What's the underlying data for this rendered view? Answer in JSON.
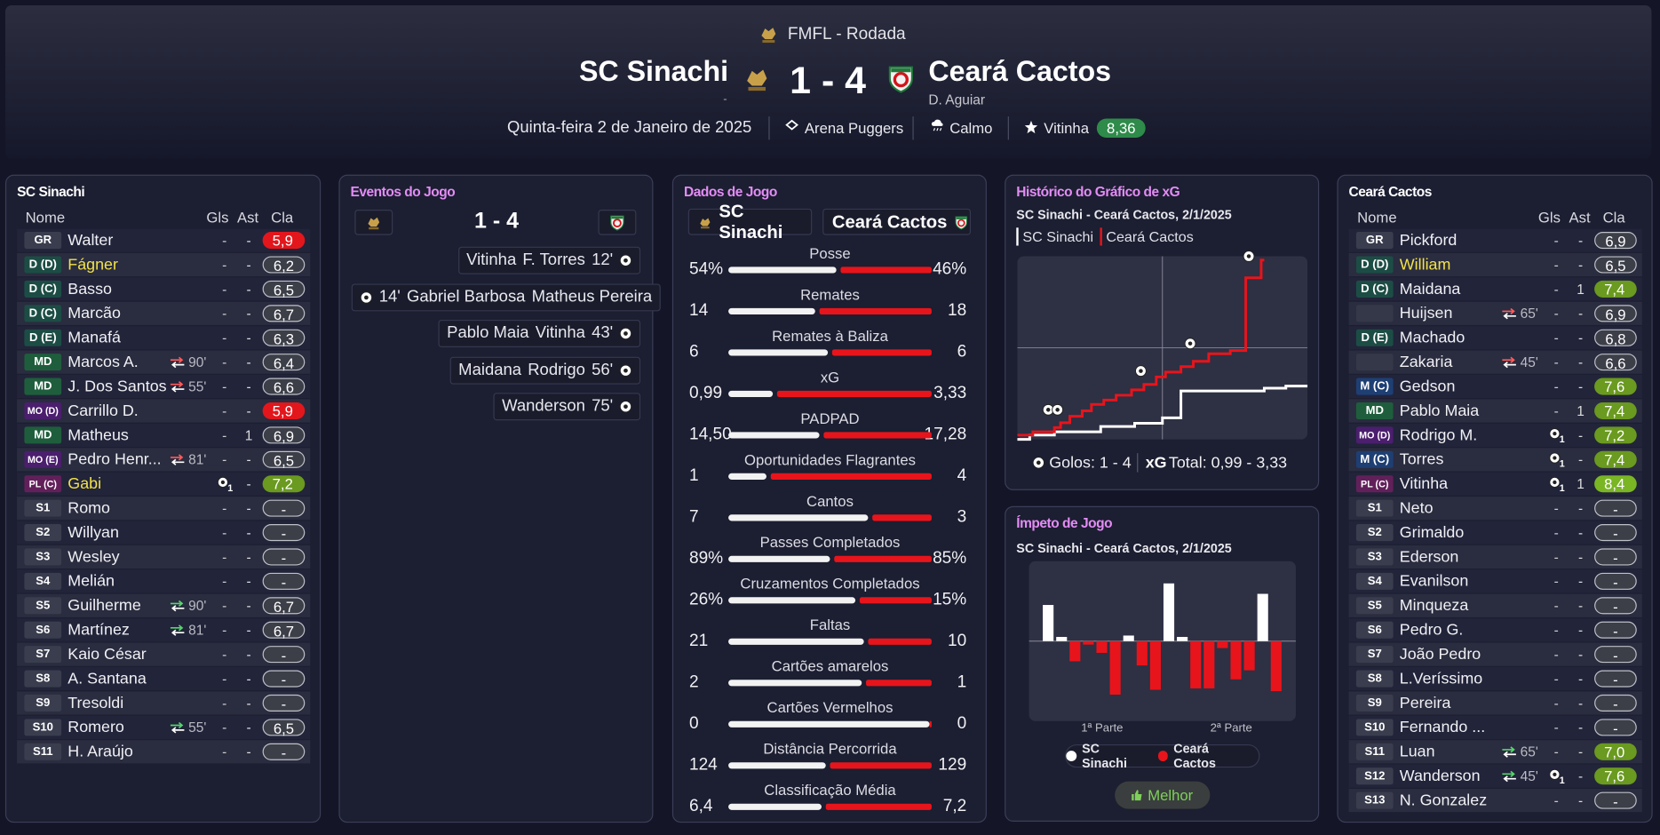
{
  "header": {
    "competition": "FMFL - Rodada",
    "home_team": "SC Sinachi",
    "home_manager": "-",
    "score": "1 - 4",
    "away_team": "Ceará Cactos",
    "away_manager": "D. Aguiar",
    "date": "Quinta-feira 2 de Janeiro de 2025",
    "stadium": "Arena Puggers",
    "weather": "Calmo",
    "player_of_match": "Vitinha",
    "player_of_match_rating": "8,36"
  },
  "home_lineup": {
    "title": "SC Sinachi",
    "columns": [
      "Nome",
      "Gls",
      "Ast",
      "Cla"
    ],
    "rows": [
      {
        "pos": "GR",
        "name": "Walter",
        "gls": "-",
        "ast": "-",
        "rating": {
          "value": 5.9,
          "label": "5,9"
        }
      },
      {
        "pos": "D (D)",
        "name": "Fágner",
        "highlight": true,
        "gls": "-",
        "ast": "-",
        "rating": {
          "value": 6.2,
          "label": "6,2"
        }
      },
      {
        "pos": "D (C)",
        "name": "Basso",
        "gls": "-",
        "ast": "-",
        "rating": {
          "value": 6.5,
          "label": "6,5"
        }
      },
      {
        "pos": "D (C)",
        "name": "Marcão",
        "gls": "-",
        "ast": "-",
        "rating": {
          "value": 6.7,
          "label": "6,7"
        }
      },
      {
        "pos": "D (E)",
        "name": "Manafá",
        "gls": "-",
        "ast": "-",
        "rating": {
          "value": 6.3,
          "label": "6,3"
        }
      },
      {
        "pos": "MD",
        "name": "Marcos A.",
        "sub": "90'",
        "sub_dir": "off",
        "gls": "-",
        "ast": "-",
        "rating": {
          "value": 6.4,
          "label": "6,4"
        }
      },
      {
        "pos": "MD",
        "name": "J. Dos Santos",
        "sub": "55'",
        "sub_dir": "off",
        "gls": "-",
        "ast": "-",
        "rating": {
          "value": 6.6,
          "label": "6,6"
        }
      },
      {
        "pos": "MO (D)",
        "name": "Carrillo D.",
        "gls": "-",
        "ast": "-",
        "rating": {
          "value": 5.9,
          "label": "5,9"
        }
      },
      {
        "pos": "MD",
        "name": "Matheus",
        "gls": "-",
        "ast": 1,
        "rating": {
          "value": 6.9,
          "label": "6,9"
        }
      },
      {
        "pos": "MO (E)",
        "name": "Pedro Henr...",
        "sub": "81'",
        "sub_dir": "off",
        "gls": "-",
        "ast": "-",
        "rating": {
          "value": 6.5,
          "label": "6,5"
        }
      },
      {
        "pos": "PL (C)",
        "name": "Gabi",
        "highlight": true,
        "gls": 1,
        "ast": "-",
        "rating": {
          "value": 7.2,
          "label": "7,2"
        }
      },
      {
        "pos": "S1",
        "name": "Romo",
        "gls": "-",
        "ast": "-",
        "rating": "-"
      },
      {
        "pos": "S2",
        "name": "Willyan",
        "gls": "-",
        "ast": "-",
        "rating": "-"
      },
      {
        "pos": "S3",
        "name": "Wesley",
        "gls": "-",
        "ast": "-",
        "rating": "-"
      },
      {
        "pos": "S4",
        "name": "Melián",
        "gls": "-",
        "ast": "-",
        "rating": "-"
      },
      {
        "pos": "S5",
        "name": "Guilherme",
        "sub": "90'",
        "sub_dir": "on",
        "gls": "-",
        "ast": "-",
        "rating": {
          "value": 6.7,
          "label": "6,7"
        }
      },
      {
        "pos": "S6",
        "name": "Martínez",
        "sub": "81'",
        "sub_dir": "on",
        "gls": "-",
        "ast": "-",
        "rating": {
          "value": 6.7,
          "label": "6,7"
        }
      },
      {
        "pos": "S7",
        "name": "Kaio César",
        "gls": "-",
        "ast": "-",
        "rating": "-"
      },
      {
        "pos": "S8",
        "name": "A. Santana",
        "gls": "-",
        "ast": "-",
        "rating": "-"
      },
      {
        "pos": "S9",
        "name": "Tresoldi",
        "gls": "-",
        "ast": "-",
        "rating": "-"
      },
      {
        "pos": "S10",
        "name": "Romero",
        "sub": "55'",
        "sub_dir": "on",
        "gls": "-",
        "ast": "-",
        "rating": {
          "value": 6.5,
          "label": "6,5"
        }
      },
      {
        "pos": "S11",
        "name": "H. Araújo",
        "gls": "-",
        "ast": "-",
        "rating": "-"
      }
    ]
  },
  "events": {
    "title": "Eventos do Jogo",
    "score": "1 - 4",
    "items": [
      {
        "side": "away",
        "names": [
          "Vitinha",
          "F. Torres"
        ],
        "minute": "12'"
      },
      {
        "side": "home",
        "minute": "14'",
        "names": [
          "Gabriel Barbosa",
          "Matheus Pereira"
        ]
      },
      {
        "side": "away",
        "names": [
          "Pablo Maia",
          "Vitinha"
        ],
        "minute": "43'"
      },
      {
        "side": "away",
        "names": [
          "Maidana",
          "Rodrigo"
        ],
        "minute": "56'"
      },
      {
        "side": "away",
        "names": [
          "Wanderson"
        ],
        "minute": "75'"
      }
    ]
  },
  "match_stats": {
    "title": "Dados de Jogo",
    "home_team": "SC Sinachi",
    "away_team": "Ceará Cactos",
    "rows": [
      {
        "name": "Posse",
        "home": {
          "value": 54,
          "label": "54%"
        },
        "away": {
          "value": 46,
          "label": "46%"
        }
      },
      {
        "name": "Remates",
        "home": 14,
        "away": 18
      },
      {
        "name": "Remates à Baliza",
        "home": 6,
        "away": 6
      },
      {
        "name": "xG",
        "home": {
          "value": 0.99,
          "label": "0,99"
        },
        "away": {
          "value": 3.33,
          "label": "3,33"
        }
      },
      {
        "name": "PADPAD",
        "home": {
          "value": 14.5,
          "label": "14,50"
        },
        "away": {
          "value": 17.28,
          "label": "17,28"
        }
      },
      {
        "name": "Oportunidades Flagrantes",
        "home": 1,
        "away": 4
      },
      {
        "name": "Cantos",
        "home": 7,
        "away": 3
      },
      {
        "name": "Passes Completados",
        "home": {
          "value": 89,
          "label": "89%"
        },
        "away": {
          "value": 85,
          "label": "85%"
        }
      },
      {
        "name": "Cruzamentos Completados",
        "home": {
          "value": 26,
          "label": "26%"
        },
        "away": {
          "value": 15,
          "label": "15%"
        }
      },
      {
        "name": "Faltas",
        "home": 21,
        "away": 10
      },
      {
        "name": "Cartões amarelos",
        "home": 2,
        "away": 1
      },
      {
        "name": "Cartões Vermelhos",
        "home": 0,
        "away": 0
      },
      {
        "name": "Distância Percorrida",
        "home": 124,
        "away": 129
      },
      {
        "name": "Classificação Média",
        "home": {
          "value": 6.4,
          "label": "6,4"
        },
        "away": {
          "value": 7.2,
          "label": "7,2"
        }
      }
    ]
  },
  "xg_chart": {
    "type": "line",
    "title": "Histórico do Gráfico de xG",
    "subtitle": "SC Sinachi - Ceará Cactos, 2/1/2025",
    "xlim": [
      0,
      94
    ],
    "ylim": [
      0,
      3.4
    ],
    "series": [
      {
        "name": "SC Sinachi",
        "color": "#ffffff",
        "x": [
          0,
          4,
          4,
          12,
          12,
          27,
          27,
          38,
          38,
          47,
          47,
          53,
          53,
          80,
          80,
          87,
          87,
          94
        ],
        "y": [
          0,
          0,
          0.08,
          0.08,
          0.14,
          0.14,
          0.24,
          0.24,
          0.3,
          0.3,
          0.4,
          0.4,
          0.9,
          0.9,
          0.95,
          0.95,
          0.99,
          0.99
        ]
      },
      {
        "name": "Ceará Cactos",
        "color": "#e8141b",
        "x": [
          0,
          5,
          5,
          12,
          12,
          14,
          14,
          17,
          17,
          21,
          21,
          24,
          24,
          28,
          28,
          32,
          32,
          37,
          37,
          41,
          41,
          45,
          45,
          48,
          48,
          53,
          53,
          57,
          57,
          62,
          62,
          69,
          69,
          74,
          74,
          79,
          79,
          80
        ],
        "y": [
          0.08,
          0.08,
          0.14,
          0.14,
          0.22,
          0.22,
          0.31,
          0.31,
          0.43,
          0.43,
          0.53,
          0.53,
          0.65,
          0.65,
          0.73,
          0.73,
          0.82,
          0.82,
          0.92,
          0.92,
          1.02,
          1.02,
          1.16,
          1.16,
          1.25,
          1.25,
          1.35,
          1.35,
          1.45,
          1.45,
          1.59,
          1.59,
          1.65,
          1.65,
          3.0,
          3.0,
          3.33,
          3.33
        ]
      }
    ],
    "goals": {
      "x": [
        10,
        13,
        40,
        56,
        75
      ],
      "y": [
        0.55,
        0.55,
        1.27,
        1.78,
        3.4
      ]
    },
    "footer_goals": "Golos: 1 - 4",
    "footer_xg_label": "xG",
    "footer_xg": "Total: 0,99 - 3,33"
  },
  "momentum_chart": {
    "type": "bar",
    "title": "Ímpeto de Jogo",
    "subtitle": "SC Sinachi - Ceará Cactos, 2/1/2025",
    "ylim": [
      -1.15,
      1.15
    ],
    "values": [
      0.52,
      0.06,
      -0.29,
      -0.05,
      -0.17,
      -0.77,
      0.08,
      -0.35,
      -0.7,
      0.83,
      0.06,
      -0.68,
      -0.68,
      -0.1,
      -0.55,
      -0.42,
      0.68,
      -0.72
    ],
    "series": [
      {
        "name": "SC Sinachi",
        "color": "#ffffff"
      },
      {
        "name": "Ceará Cactos",
        "color": "#e8141b"
      }
    ],
    "period_labels": [
      "1ª Parte",
      "2ª Parte"
    ],
    "button": "Melhor"
  },
  "away_lineup": {
    "title": "Ceará Cactos",
    "columns": [
      "Nome",
      "Gls",
      "Ast",
      "Cla"
    ],
    "rows": [
      {
        "pos": "GR",
        "name": "Pickford",
        "gls": "-",
        "ast": "-",
        "rating": {
          "value": 6.9,
          "label": "6,9"
        }
      },
      {
        "pos": "D (D)",
        "name": "William",
        "highlight": true,
        "gls": "-",
        "ast": "-",
        "rating": {
          "value": 6.5,
          "label": "6,5"
        }
      },
      {
        "pos": "D (C)",
        "name": "Maidana",
        "gls": "-",
        "ast": 1,
        "rating": {
          "value": 7.4,
          "label": "7,4"
        }
      },
      {
        "name": "Huijsen",
        "sub": "65'",
        "sub_dir": "off",
        "gls": "-",
        "ast": "-",
        "rating": {
          "value": 6.9,
          "label": "6,9"
        }
      },
      {
        "pos": "D (E)",
        "name": "Machado",
        "gls": "-",
        "ast": "-",
        "rating": {
          "value": 6.8,
          "label": "6,8"
        }
      },
      {
        "name": "Zakaria",
        "sub": "45'",
        "sub_dir": "off",
        "gls": "-",
        "ast": "-",
        "rating": {
          "value": 6.6,
          "label": "6,6"
        }
      },
      {
        "pos": "M (C)",
        "name": "Gedson",
        "gls": "-",
        "ast": "-",
        "rating": {
          "value": 7.6,
          "label": "7,6"
        }
      },
      {
        "pos": "MD",
        "name": "Pablo Maia",
        "gls": "-",
        "ast": 1,
        "rating": {
          "value": 7.4,
          "label": "7,4"
        }
      },
      {
        "pos": "MO (D)",
        "name": "Rodrigo M.",
        "gls": 1,
        "ast": "-",
        "rating": {
          "value": 7.2,
          "label": "7,2"
        }
      },
      {
        "pos": "M (C)",
        "name": "Torres",
        "gls": 1,
        "ast": "-",
        "rating": {
          "value": 7.4,
          "label": "7,4"
        }
      },
      {
        "pos": "PL (C)",
        "name": "Vitinha",
        "gls": 1,
        "ast": 1,
        "rating": {
          "value": 8.4,
          "label": "8,4"
        }
      },
      {
        "pos": "S1",
        "name": "Neto",
        "gls": "-",
        "ast": "-",
        "rating": "-"
      },
      {
        "pos": "S2",
        "name": "Grimaldo",
        "gls": "-",
        "ast": "-",
        "rating": "-"
      },
      {
        "pos": "S3",
        "name": "Ederson",
        "gls": "-",
        "ast": "-",
        "rating": "-"
      },
      {
        "pos": "S4",
        "name": "Evanilson",
        "gls": "-",
        "ast": "-",
        "rating": "-"
      },
      {
        "pos": "S5",
        "name": "Minqueza",
        "gls": "-",
        "ast": "-",
        "rating": "-"
      },
      {
        "pos": "S6",
        "name": "Pedro G.",
        "gls": "-",
        "ast": "-",
        "rating": "-"
      },
      {
        "pos": "S7",
        "name": "João Pedro",
        "gls": "-",
        "ast": "-",
        "rating": "-"
      },
      {
        "pos": "S8",
        "name": "L.Veríssimo",
        "gls": "-",
        "ast": "-",
        "rating": "-"
      },
      {
        "pos": "S9",
        "name": "Pereira",
        "gls": "-",
        "ast": "-",
        "rating": "-"
      },
      {
        "pos": "S10",
        "name": "Fernando ...",
        "gls": "-",
        "ast": "-",
        "rating": "-"
      },
      {
        "pos": "S11",
        "name": "Luan",
        "sub": "65'",
        "sub_dir": "on",
        "gls": "-",
        "ast": "-",
        "rating": {
          "value": 7.0,
          "label": "7,0"
        }
      },
      {
        "pos": "S12",
        "name": "Wanderson",
        "sub": "45'",
        "sub_dir": "on",
        "gls": 1,
        "ast": "-",
        "rating": {
          "value": 7.6,
          "label": "7,6"
        }
      },
      {
        "pos": "S13",
        "name": "N. Gonzalez",
        "gls": "-",
        "ast": "-",
        "rating": "-"
      }
    ]
  }
}
